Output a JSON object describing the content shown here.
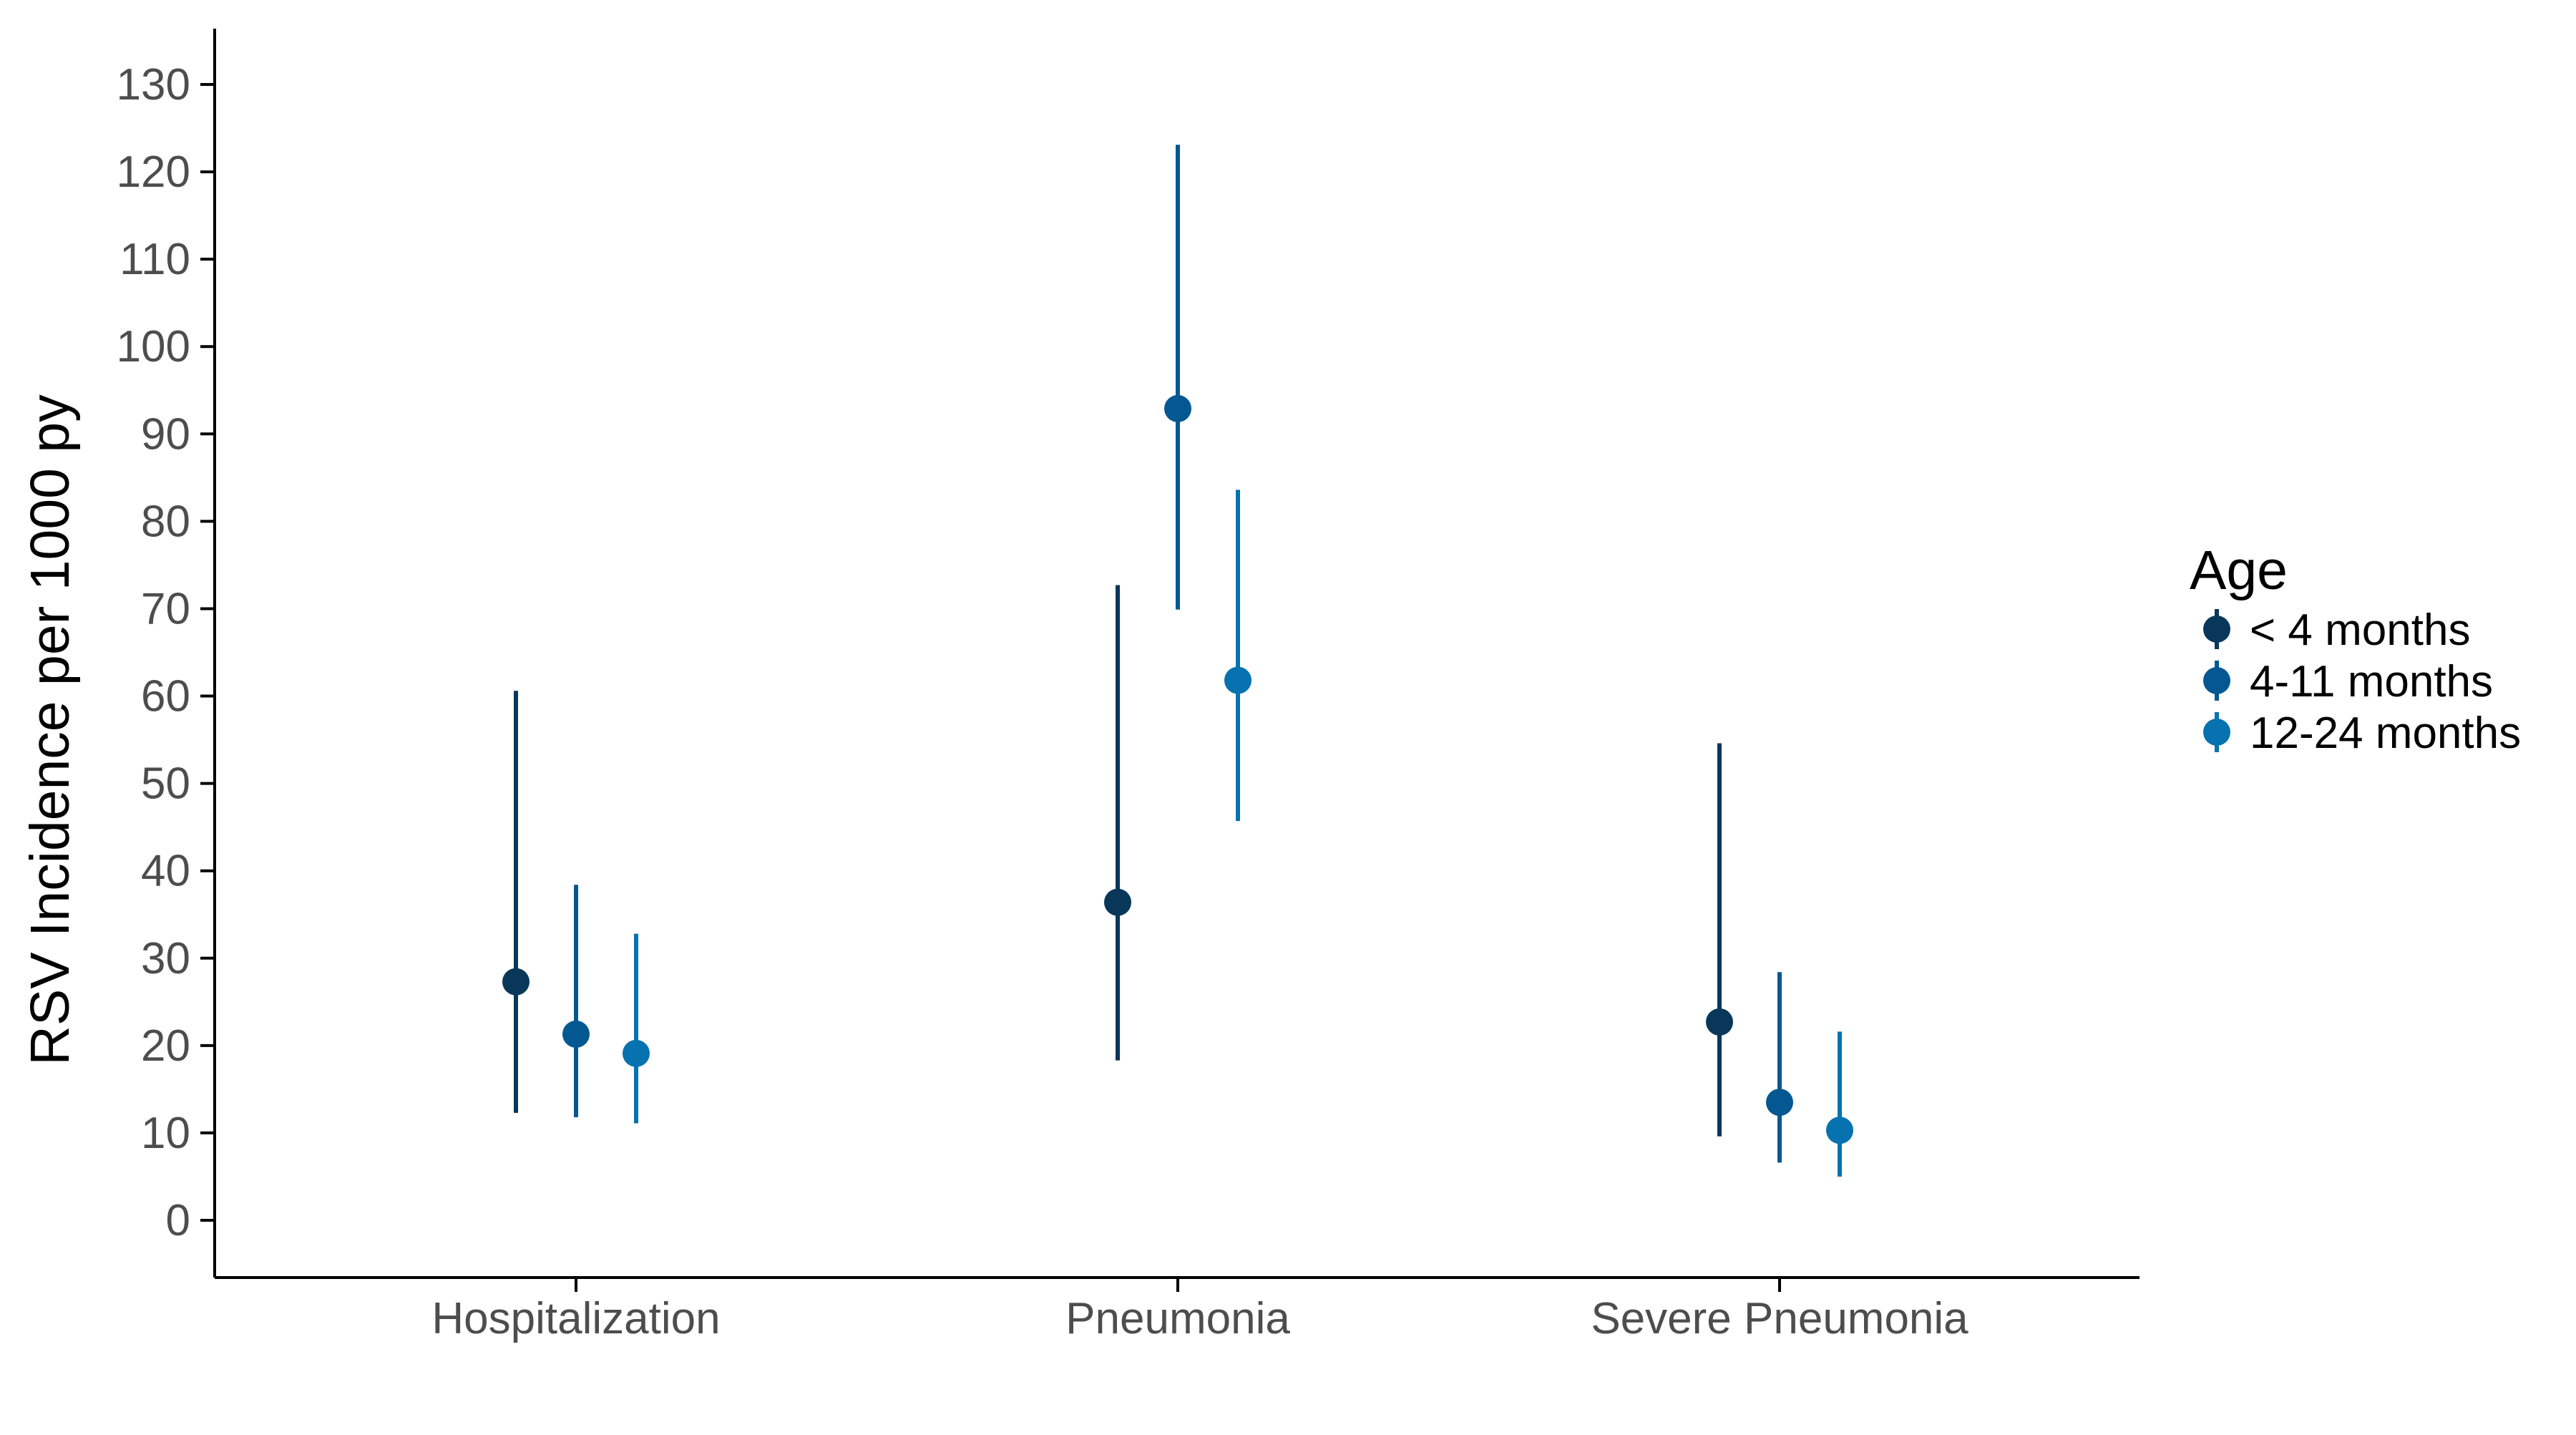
{
  "chart_data": {
    "type": "scatter",
    "subtype": "point-range",
    "title": "",
    "xlabel": "",
    "ylabel": "RSV Incidence per 1000 py",
    "ylim": [
      -6.5,
      136.5
    ],
    "yticks": [
      0,
      10,
      20,
      30,
      40,
      50,
      60,
      70,
      80,
      90,
      100,
      110,
      120,
      130
    ],
    "categories": [
      "Hospitalization",
      "Pneumonia",
      "Severe Pneumonia"
    ],
    "grid": false,
    "legend": {
      "title": "Age",
      "position": "right"
    },
    "series": [
      {
        "name": "< 4 months",
        "color": "#08375a",
        "values": [
          27.3,
          36.4,
          22.7
        ],
        "lower": [
          12.3,
          18.3,
          9.6
        ],
        "upper": [
          60.6,
          72.7,
          54.6
        ]
      },
      {
        "name": "4-11 months",
        "color": "#045891",
        "values": [
          21.3,
          92.9,
          13.5
        ],
        "lower": [
          11.8,
          69.9,
          6.6
        ],
        "upper": [
          38.4,
          123.1,
          28.4
        ]
      },
      {
        "name": "12-24 months",
        "color": "#0672b0",
        "values": [
          19.1,
          61.8,
          10.3
        ],
        "lower": [
          11.1,
          45.7,
          5.0
        ],
        "upper": [
          32.8,
          83.6,
          21.6
        ]
      }
    ]
  }
}
